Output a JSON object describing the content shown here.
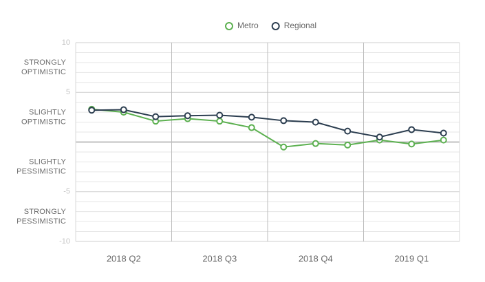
{
  "chart_data": {
    "type": "line",
    "categories": [
      null,
      null,
      null,
      null,
      null,
      null,
      null,
      null,
      null,
      null,
      null,
      null
    ],
    "x_groups": [
      "2018 Q2",
      "2018 Q3",
      "2018 Q4",
      "2019 Q1"
    ],
    "series": [
      {
        "name": "Metro",
        "color": "#5cb050",
        "values": [
          3.3,
          3.0,
          2.1,
          2.35,
          2.1,
          1.45,
          -0.5,
          -0.15,
          -0.3,
          0.2,
          -0.2,
          0.2
        ]
      },
      {
        "name": "Regional",
        "color": "#2c3e50",
        "values": [
          3.2,
          3.25,
          2.55,
          2.65,
          2.7,
          2.5,
          2.15,
          2.0,
          1.1,
          0.5,
          1.25,
          0.9
        ]
      }
    ],
    "ylim": [
      -10,
      10
    ],
    "yticks": [
      10,
      5,
      -5,
      -10
    ],
    "minor_yticks": [
      9,
      8,
      7,
      6,
      4,
      3,
      2,
      1,
      -1,
      -2,
      -3,
      -4,
      -6,
      -7,
      -8,
      -9
    ],
    "zones": [
      [
        "STRONGLY",
        "OPTIMISTIC"
      ],
      [
        "SLIGHTLY",
        "OPTIMISTIC"
      ],
      [
        "SLIGHTLY",
        "PESSIMISTIC"
      ],
      [
        "STRONGLY",
        "PESSIMISTIC"
      ]
    ],
    "grid": true,
    "legend": "top"
  }
}
